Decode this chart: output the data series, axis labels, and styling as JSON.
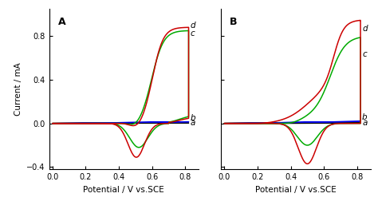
{
  "panel_A_label": "A",
  "panel_B_label": "B",
  "xlabel": "Potential / V vs.SCE",
  "ylabel": "Current / mA",
  "xlim": [
    -0.02,
    0.88
  ],
  "ylim": [
    -0.42,
    1.05
  ],
  "xticks": [
    0.0,
    0.2,
    0.4,
    0.6,
    0.8
  ],
  "yticks": [
    -0.4,
    0.0,
    0.4,
    0.8
  ],
  "colors": {
    "a": "#000000",
    "b": "#0000ee",
    "c": "#00aa00",
    "d": "#cc0000"
  },
  "background": "#ffffff"
}
